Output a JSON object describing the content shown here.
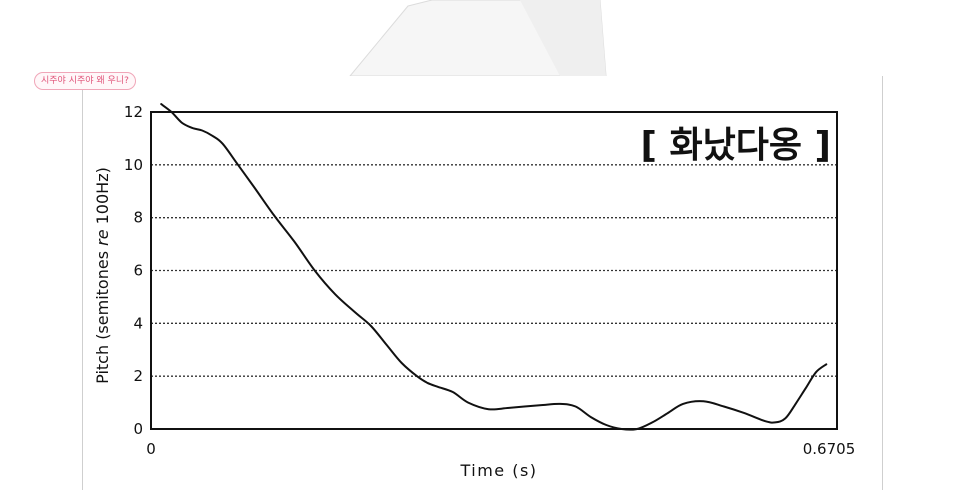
{
  "caption": "시주야 시주야 왜 우니?",
  "chart_data": {
    "type": "line",
    "title": "[ 화났다옹 ]",
    "xlabel": "Time (s)",
    "ylabel_main": "Pitch (semitones ",
    "ylabel_italic": "re",
    "ylabel_end": " 100Hz)",
    "xlim": [
      0,
      0.6705
    ],
    "ylim": [
      0,
      12
    ],
    "x_tick_labels": [
      "0",
      "0.6705"
    ],
    "y_tick_labels": [
      "0",
      "2",
      "4",
      "6",
      "8",
      "10",
      "12"
    ],
    "y_ticks": [
      0,
      2,
      4,
      6,
      8,
      10,
      12
    ],
    "grid": "horizontal dotted",
    "line_color": "#111111",
    "x": [
      0.01,
      0.02,
      0.03,
      0.04,
      0.05,
      0.06,
      0.07,
      0.085,
      0.1,
      0.12,
      0.14,
      0.16,
      0.18,
      0.2,
      0.215,
      0.23,
      0.245,
      0.26,
      0.27,
      0.28,
      0.295,
      0.31,
      0.33,
      0.35,
      0.38,
      0.4,
      0.415,
      0.43,
      0.445,
      0.46,
      0.475,
      0.49,
      0.505,
      0.52,
      0.54,
      0.56,
      0.58,
      0.6,
      0.61,
      0.62,
      0.63,
      0.64,
      0.65,
      0.66
    ],
    "y": [
      12.3,
      12.0,
      11.6,
      11.4,
      11.3,
      11.1,
      10.8,
      10.0,
      9.2,
      8.1,
      7.1,
      6.0,
      5.1,
      4.4,
      3.9,
      3.2,
      2.5,
      2.0,
      1.75,
      1.6,
      1.4,
      1.0,
      0.75,
      0.8,
      0.9,
      0.95,
      0.85,
      0.45,
      0.15,
      0.0,
      0.0,
      0.25,
      0.6,
      0.95,
      1.05,
      0.85,
      0.6,
      0.3,
      0.25,
      0.4,
      0.95,
      1.55,
      2.15,
      2.45
    ]
  }
}
